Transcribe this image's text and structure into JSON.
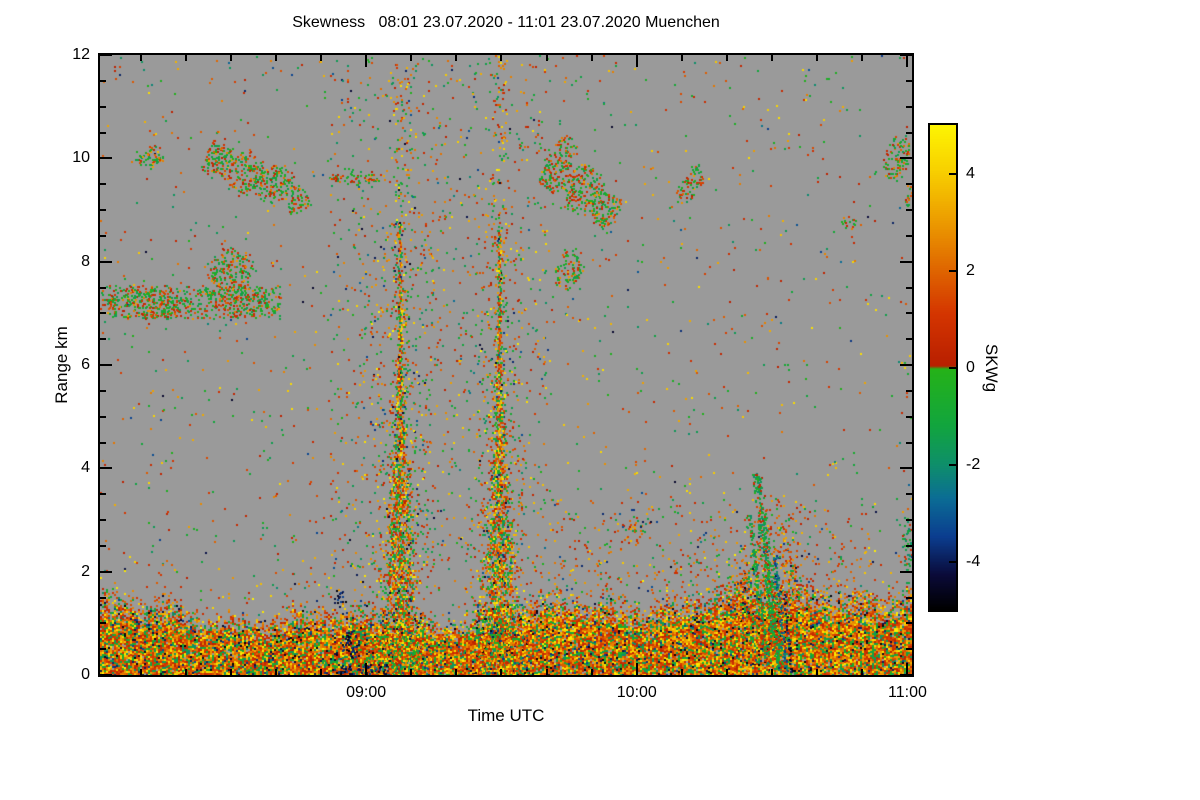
{
  "chart_data": {
    "type": "heatmap",
    "title": "Skewness   08:01 23.07.2020 - 11:01 23.07.2020 Muenchen",
    "xlabel": "Time UTC",
    "ylabel": "Range km",
    "x_range_minutes": [
      0,
      180
    ],
    "x_start_label": "08:01",
    "x_end_label": "11:01",
    "x_ticks": [
      {
        "t": 59,
        "label": "09:00"
      },
      {
        "t": 119,
        "label": "10:00"
      },
      {
        "t": 179,
        "label": "11:00"
      }
    ],
    "x_minor_step_minutes": 10,
    "y_range_km": [
      0,
      12
    ],
    "y_ticks": [
      0,
      2,
      4,
      6,
      8,
      10,
      12
    ],
    "y_minor_step_km": 0.5,
    "background_color": "#9a9a9a",
    "frame_color": "#000000",
    "colorbar": {
      "label": "SKWg",
      "min": -5,
      "max": 5,
      "ticks": [
        4,
        2,
        0,
        -2,
        -4
      ],
      "stops": [
        [
          -5.0,
          "#000000"
        ],
        [
          -4.3,
          "#0a0a38"
        ],
        [
          -3.5,
          "#0b3d8f"
        ],
        [
          -2.7,
          "#0b6d95"
        ],
        [
          -2.0,
          "#0e8f6a"
        ],
        [
          -1.2,
          "#12a53e"
        ],
        [
          -0.03,
          "#25b218"
        ],
        [
          0.03,
          "#b81f00"
        ],
        [
          1.1,
          "#d43500"
        ],
        [
          2.1,
          "#e06a00"
        ],
        [
          3.1,
          "#eda000"
        ],
        [
          4.1,
          "#f8d200"
        ],
        [
          5.0,
          "#fdf402"
        ]
      ]
    },
    "palettes": {
      "all": [
        [
          -4.5,
          -2,
          0.08
        ],
        [
          -2,
          -0.1,
          0.34
        ],
        [
          0.1,
          2,
          0.34
        ],
        [
          2,
          4.5,
          0.24
        ]
      ],
      "cloud": [
        [
          -1.6,
          -0.1,
          0.52
        ],
        [
          0.1,
          1.6,
          0.33
        ],
        [
          1.6,
          3.2,
          0.15
        ]
      ],
      "layer": [
        [
          -5,
          -3.2,
          0.07
        ],
        [
          -2.2,
          -0.2,
          0.2
        ],
        [
          0.1,
          1.8,
          0.32
        ],
        [
          1.8,
          3.3,
          0.25
        ],
        [
          3.3,
          5,
          0.16
        ]
      ],
      "plume": [
        [
          -4.8,
          -3,
          0.06
        ],
        [
          -2,
          -0.2,
          0.3
        ],
        [
          0.1,
          1.8,
          0.3
        ],
        [
          1.8,
          3.5,
          0.2
        ],
        [
          3.5,
          5,
          0.14
        ]
      ],
      "warm": [
        [
          -4.5,
          -3,
          0.06
        ],
        [
          -1.5,
          -0.2,
          0.18
        ],
        [
          0.1,
          2,
          0.45
        ],
        [
          2,
          4,
          0.31
        ]
      ],
      "green": [
        [
          -2.2,
          -0.3,
          0.85
        ],
        [
          0.1,
          1.2,
          0.15
        ]
      ],
      "teal": [
        [
          -3.6,
          -1.4,
          1
        ]
      ],
      "dark": [
        [
          -5,
          -3.3,
          1
        ]
      ]
    },
    "features": [
      {
        "type": "rect",
        "t": [
          0,
          180
        ],
        "h": [
          1.9,
          12
        ],
        "d": 0.012,
        "vals": "all"
      },
      {
        "type": "rect",
        "t": [
          51,
          99
        ],
        "h": [
          2,
          12
        ],
        "d": 0.03,
        "vals": "all"
      },
      {
        "type": "rect",
        "t": [
          60,
          74
        ],
        "h": [
          2,
          9
        ],
        "d": 0.05,
        "vals": "plume"
      },
      {
        "type": "rect",
        "t": [
          83.5,
          93.5
        ],
        "h": [
          2,
          8.7
        ],
        "d": 0.05,
        "vals": "plume"
      },
      {
        "type": "rect",
        "t": [
          65,
          69
        ],
        "h": [
          8.8,
          11.9
        ],
        "d": 0.12,
        "vals": "plume"
      },
      {
        "type": "rect",
        "t": [
          86.8,
          90.2
        ],
        "h": [
          8.6,
          11.9
        ],
        "d": 0.1,
        "vals": "plume"
      },
      {
        "type": "rect",
        "t": [
          0,
          40
        ],
        "h": [
          6.9,
          7.55
        ],
        "d": 0.28,
        "vals": "cloud"
      },
      {
        "type": "blob",
        "t": 10,
        "h": 7.2,
        "rt": 10,
        "rh": 0.33,
        "rot": 3,
        "d": 0.45,
        "vals": "cloud"
      },
      {
        "type": "blob",
        "t": 30.5,
        "h": 7.3,
        "rt": 8,
        "rh": 0.3,
        "rot": 5,
        "d": 0.35,
        "vals": "cloud"
      },
      {
        "type": "blob",
        "t": 29,
        "h": 7.85,
        "rt": 5.5,
        "rh": 0.5,
        "rot": 20,
        "d": 0.45,
        "vals": "cloud"
      },
      {
        "type": "blob",
        "t": 11,
        "h": 10.05,
        "rt": 3.5,
        "rh": 0.25,
        "rot": 8,
        "d": 0.5,
        "vals": "cloud"
      },
      {
        "type": "blob",
        "t": 26,
        "h": 10,
        "rt": 3.8,
        "rh": 0.42,
        "rot": 15,
        "d": 0.5,
        "vals": "cloud"
      },
      {
        "type": "blob",
        "t": 32,
        "h": 9.75,
        "rt": 4.5,
        "rh": 0.5,
        "rot": 18,
        "d": 0.5,
        "vals": "cloud"
      },
      {
        "type": "blob",
        "t": 38.5,
        "h": 9.5,
        "rt": 4.8,
        "rh": 0.42,
        "rot": 16,
        "d": 0.5,
        "vals": "cloud"
      },
      {
        "type": "blob",
        "t": 43.5,
        "h": 9.2,
        "rt": 3.2,
        "rh": 0.3,
        "rot": 12,
        "d": 0.45,
        "vals": "cloud"
      },
      {
        "type": "blob",
        "t": 57,
        "h": 9.62,
        "rt": 7,
        "rh": 0.13,
        "rot": 0,
        "d": 0.55,
        "vals": "cloud"
      },
      {
        "type": "blob",
        "t": 101,
        "h": 9.75,
        "rt": 3.8,
        "rh": 0.5,
        "rot": 20,
        "d": 0.5,
        "vals": "cloud"
      },
      {
        "type": "blob",
        "t": 107,
        "h": 9.4,
        "rt": 4.8,
        "rh": 0.55,
        "rot": 22,
        "d": 0.5,
        "vals": "cloud"
      },
      {
        "type": "blob",
        "t": 112,
        "h": 9,
        "rt": 3.8,
        "rh": 0.4,
        "rot": 18,
        "d": 0.5,
        "vals": "cloud"
      },
      {
        "type": "blob",
        "t": 103.5,
        "h": 10.25,
        "rt": 2.8,
        "rh": 0.22,
        "rot": 10,
        "d": 0.4,
        "vals": "cloud"
      },
      {
        "type": "blob",
        "t": 104,
        "h": 7.85,
        "rt": 3.2,
        "rh": 0.45,
        "rot": 25,
        "d": 0.5,
        "vals": "cloud"
      },
      {
        "type": "blob",
        "t": 131,
        "h": 9.5,
        "rt": 2.4,
        "rh": 0.45,
        "rot": 30,
        "d": 0.5,
        "vals": "cloud"
      },
      {
        "type": "blob",
        "t": 166,
        "h": 8.75,
        "rt": 2,
        "rh": 0.14,
        "rot": 10,
        "d": 0.4,
        "vals": "cloud"
      },
      {
        "type": "blob",
        "t": 176.5,
        "h": 10,
        "rt": 3,
        "rh": 0.5,
        "rot": 15,
        "d": 0.45,
        "vals": "cloud"
      },
      {
        "type": "blob",
        "t": 179.5,
        "h": 9.3,
        "rt": 1.5,
        "rh": 0.3,
        "rot": 10,
        "d": 0.4,
        "vals": "cloud"
      },
      {
        "type": "layer",
        "h_mean": 1.55,
        "amps": [
          0.3,
          0.18,
          0.1
        ],
        "d": 1,
        "vals": "layer"
      },
      {
        "type": "plume",
        "t": 66.5,
        "h_top": 8.8,
        "w_base": 7.2,
        "w_top": 0.45,
        "power": 2.2,
        "d": 0.8,
        "vals": "plume"
      },
      {
        "type": "plume",
        "t": 88.5,
        "h_top": 8.6,
        "w_base": 6.8,
        "w_top": 0.45,
        "power": 2,
        "d": 0.8,
        "vals": "plume"
      },
      {
        "type": "blob",
        "t": 55.5,
        "h": 0.6,
        "rt": 2.2,
        "rh": 0.3,
        "rot": 0,
        "d": 0.5,
        "vals": "dark"
      },
      {
        "type": "blob",
        "t": 53,
        "h": 1.5,
        "rt": 1.5,
        "rh": 0.2,
        "rot": 0,
        "d": 0.4,
        "vals": "dark"
      },
      {
        "type": "rect",
        "t": [
          52,
          64
        ],
        "h": [
          0.02,
          0.22
        ],
        "d": 0.45,
        "vals": "dark"
      },
      {
        "type": "rect",
        "t": [
          100,
          170
        ],
        "h": [
          1.6,
          3.4
        ],
        "d": 0.04,
        "vals": "warm"
      },
      {
        "type": "blob",
        "t": 118,
        "h": 2.8,
        "rt": 2.8,
        "rh": 0.3,
        "rot": 25,
        "d": 0.3,
        "vals": "warm"
      },
      {
        "type": "blob",
        "t": 147.5,
        "h": 1.7,
        "rt": 7.5,
        "rh": 1.9,
        "rot": 8,
        "d": 0.22,
        "vals": "warm"
      },
      {
        "type": "streak",
        "from": [
          145.5,
          3.9
        ],
        "to": [
          150.5,
          0.1
        ],
        "w": 2.6,
        "d": 0.7,
        "vals": "green"
      },
      {
        "type": "streak",
        "from": [
          143.8,
          3.1
        ],
        "to": [
          148,
          0.1
        ],
        "w": 1.4,
        "d": 0.55,
        "vals": "green"
      },
      {
        "type": "streak",
        "from": [
          149.5,
          2.3
        ],
        "to": [
          152,
          0.05
        ],
        "w": 1.1,
        "d": 0.6,
        "vals": "teal"
      },
      {
        "type": "streak",
        "from": [
          151.5,
          1.6
        ],
        "to": [
          153.2,
          0.05
        ],
        "w": 0.7,
        "d": 0.65,
        "vals": "dark"
      },
      {
        "type": "blob",
        "t": 178.8,
        "h": 2.5,
        "rt": 1.1,
        "rh": 0.6,
        "rot": 0,
        "d": 0.5,
        "vals": "green"
      }
    ]
  }
}
